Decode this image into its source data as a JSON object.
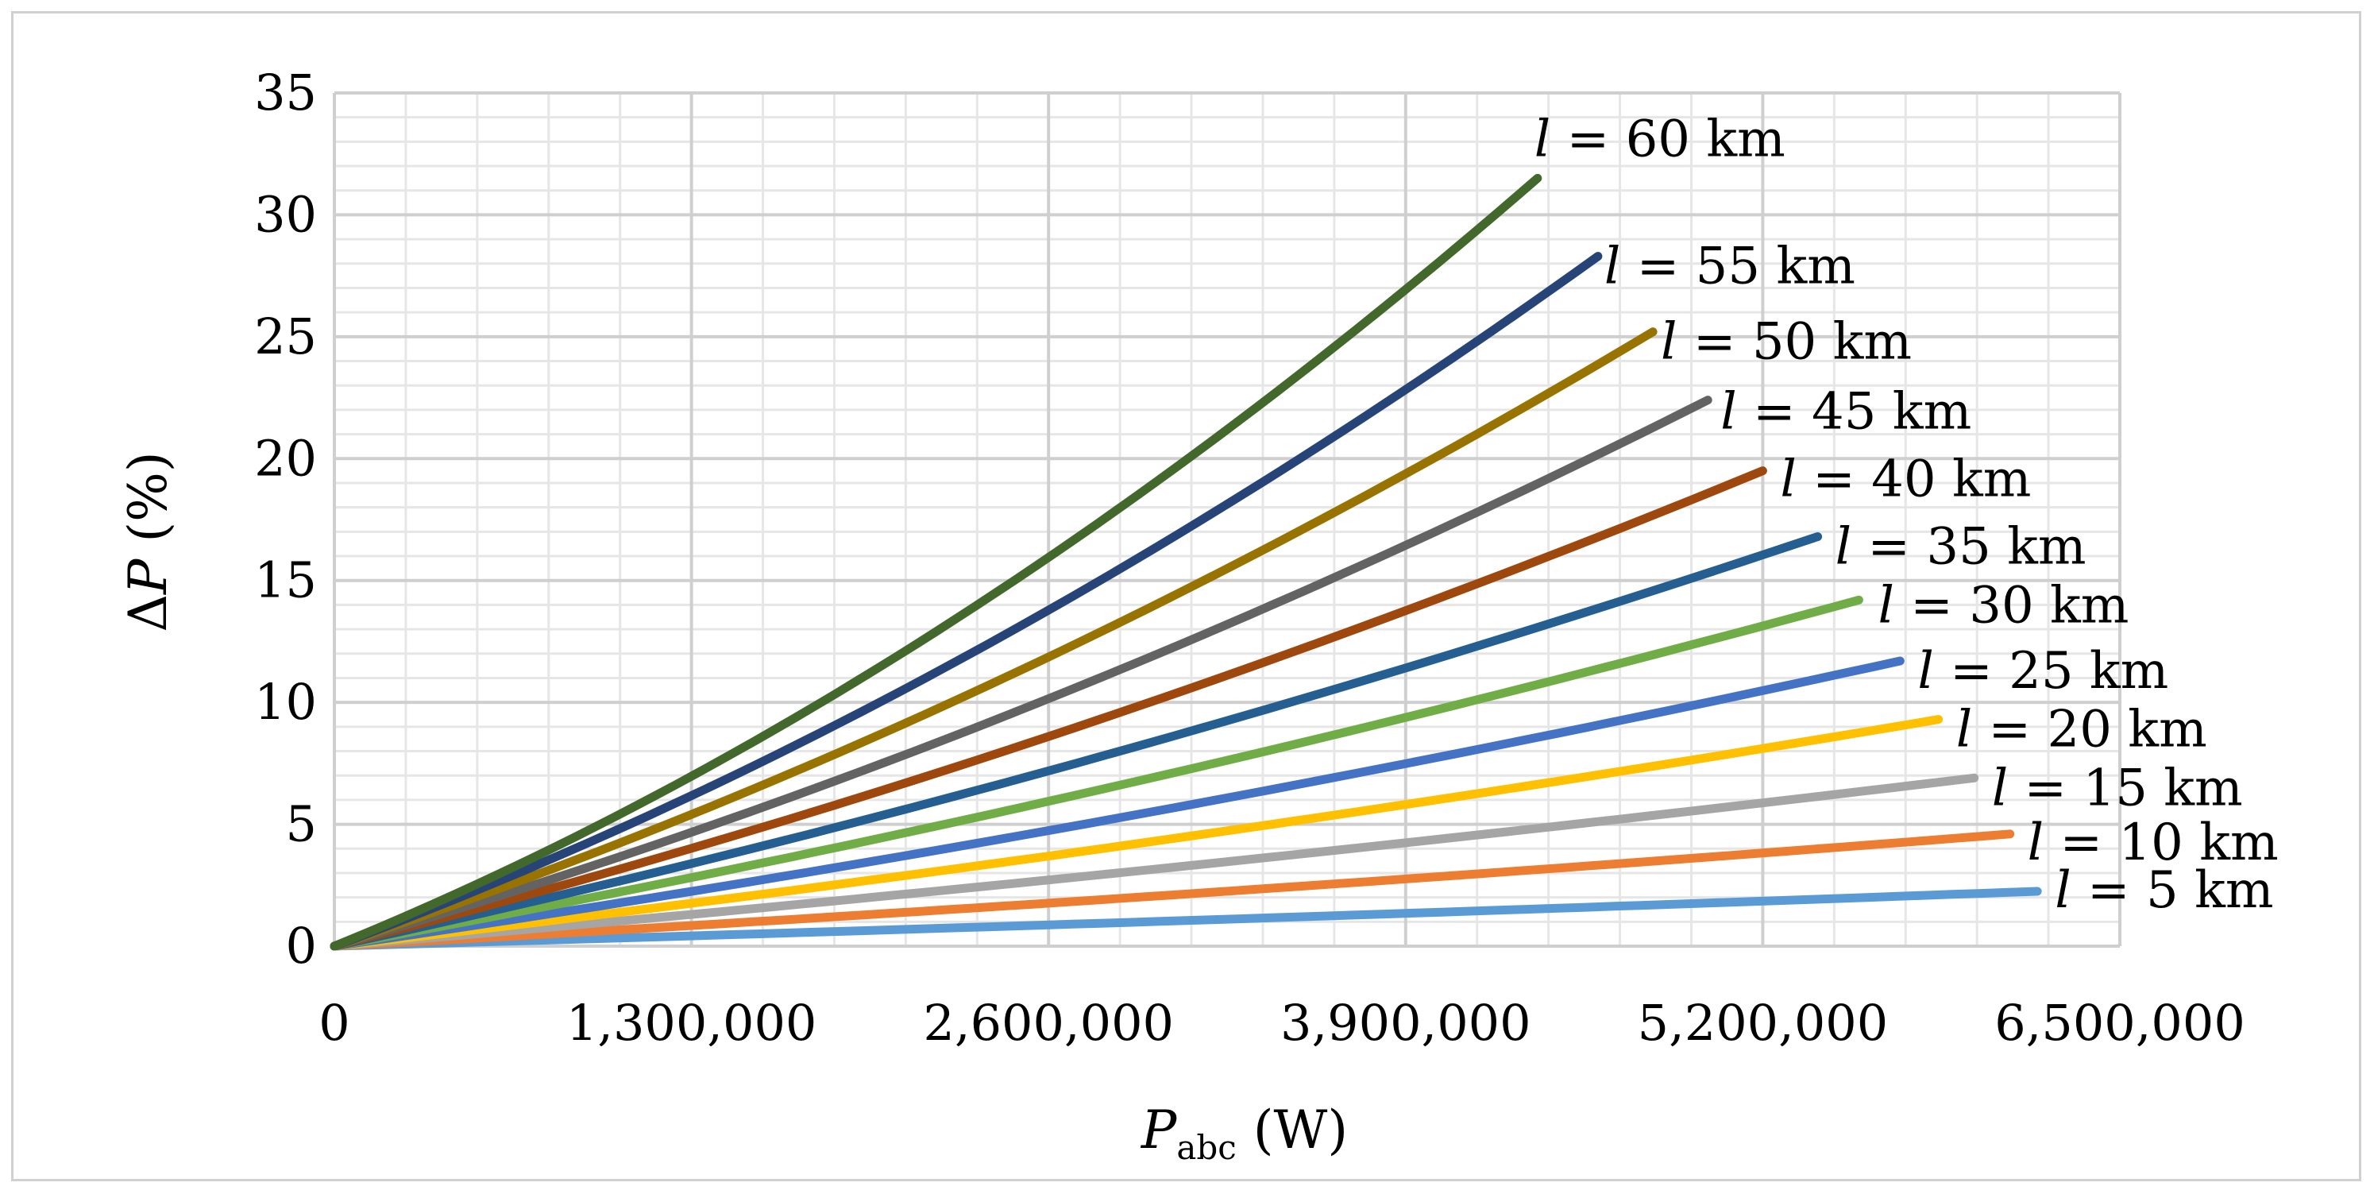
{
  "chart_data": {
    "type": "line",
    "title": "",
    "xlabel": {
      "main": "P",
      "sub": "abc",
      "unit": " (W)"
    },
    "ylabel": {
      "prefix": "Δ",
      "var": "P",
      "unit": " (%)"
    },
    "xlim": [
      0,
      6500000
    ],
    "ylim": [
      0,
      35
    ],
    "x_ticks": [
      0,
      1300000,
      2600000,
      3900000,
      5200000,
      6500000
    ],
    "x_tick_labels": [
      "0",
      "1,300,000",
      "2,600,000",
      "3,900,000",
      "5,200,000",
      "6,500,000"
    ],
    "y_ticks": [
      0,
      5,
      10,
      15,
      20,
      25,
      30,
      35
    ],
    "y_tick_labels": [
      "0",
      "5",
      "10",
      "15",
      "20",
      "25",
      "30",
      "35"
    ],
    "grid": "major and minor",
    "label_var": "l",
    "series": [
      {
        "name": "l = 5 km",
        "label_text": " = 5 km",
        "color": "#5b9bd5",
        "x": [
          0,
          3100000,
          6200000
        ],
        "y": [
          0,
          1.05,
          2.25
        ]
      },
      {
        "name": "l = 10 km",
        "label_text": " = 10 km",
        "color": "#ed7d31",
        "x": [
          0,
          3050000,
          6100000
        ],
        "y": [
          0,
          2.1,
          4.6
        ]
      },
      {
        "name": "l = 15 km",
        "label_text": " = 15 km",
        "color": "#a5a5a5",
        "x": [
          0,
          2980000,
          5970000
        ],
        "y": [
          0,
          3.15,
          6.9
        ]
      },
      {
        "name": "l = 20 km",
        "label_text": " = 20 km",
        "color": "#ffc000",
        "x": [
          0,
          2920000,
          5840000
        ],
        "y": [
          0,
          4.2,
          9.3
        ]
      },
      {
        "name": "l = 25 km",
        "label_text": " = 25 km",
        "color": "#4472c4",
        "x": [
          0,
          2850000,
          5700000
        ],
        "y": [
          0,
          5.25,
          11.7
        ]
      },
      {
        "name": "l = 30 km",
        "label_text": " = 30 km",
        "color": "#70ad47",
        "x": [
          0,
          2780000,
          5550000
        ],
        "y": [
          0,
          6.4,
          14.2
        ]
      },
      {
        "name": "l = 35 km",
        "label_text": " = 35 km",
        "color": "#255e91",
        "x": [
          0,
          2700000,
          5400000
        ],
        "y": [
          0,
          7.5,
          16.8
        ]
      },
      {
        "name": "l = 40 km",
        "label_text": " = 40 km",
        "color": "#9e480e",
        "x": [
          0,
          2600000,
          5200000
        ],
        "y": [
          0,
          8.6,
          19.5
        ]
      },
      {
        "name": "l = 45 km",
        "label_text": " = 45 km",
        "color": "#636363",
        "x": [
          0,
          2500000,
          5000000
        ],
        "y": [
          0,
          9.7,
          22.4
        ]
      },
      {
        "name": "l = 50 km",
        "label_text": " = 50 km",
        "color": "#997300",
        "x": [
          0,
          2400000,
          4800000
        ],
        "y": [
          0,
          10.8,
          25.2
        ]
      },
      {
        "name": "l = 55 km",
        "label_text": " = 55 km",
        "color": "#264478",
        "x": [
          0,
          2300000,
          4600000
        ],
        "y": [
          0,
          11.9,
          28.3
        ]
      },
      {
        "name": "l = 60 km",
        "label_text": " = 60 km",
        "color": "#43682b",
        "x": [
          0,
          2190000,
          4380000
        ],
        "y": [
          0,
          12.9,
          31.5
        ]
      }
    ]
  }
}
